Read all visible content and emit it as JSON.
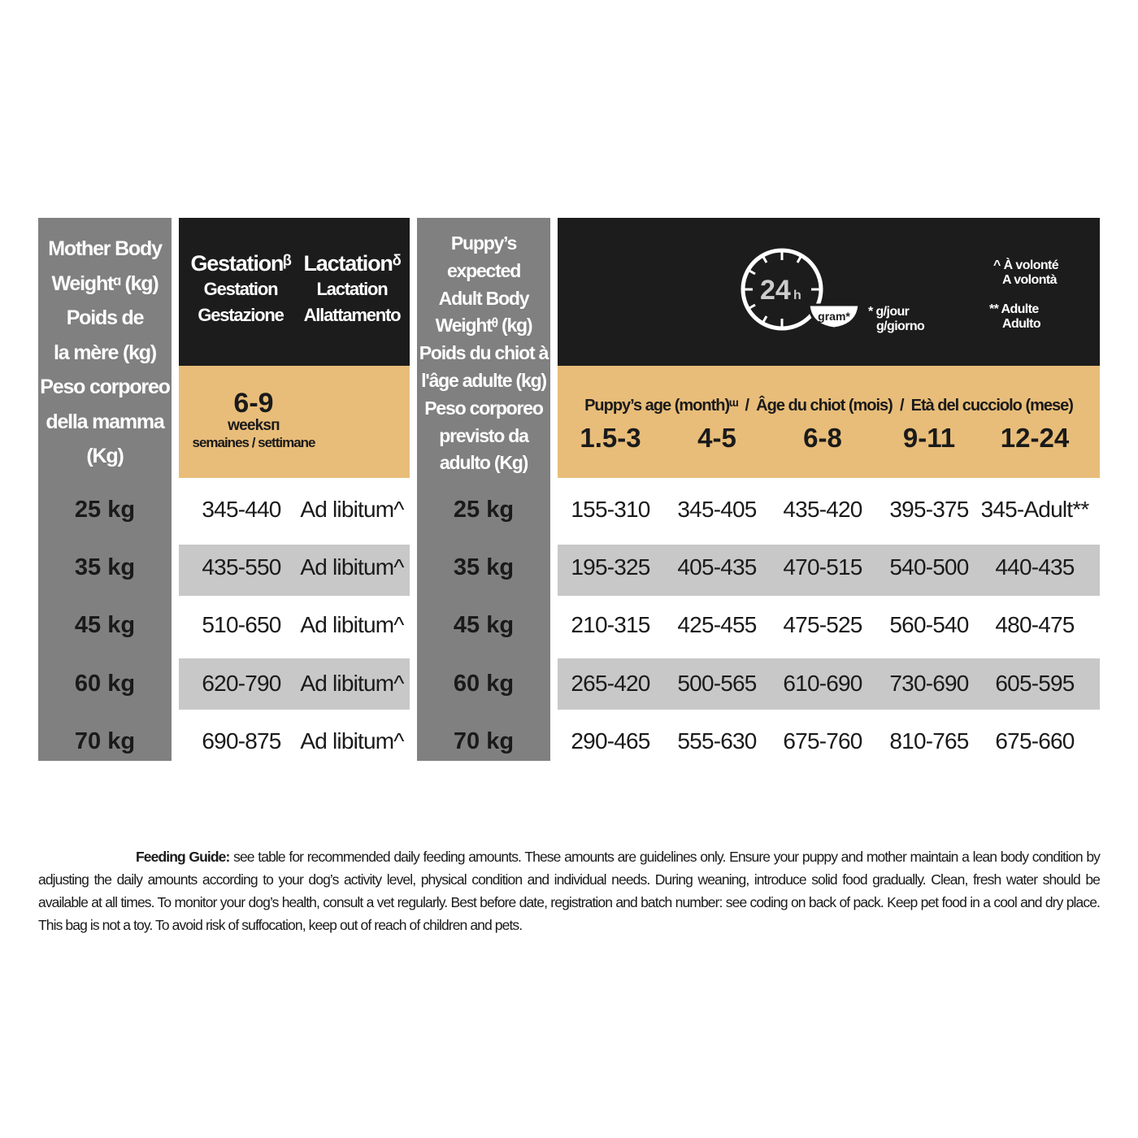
{
  "mother_header": [
    "Mother Body",
    "Weightᵅ (kg)",
    "Poids de",
    "la mère (kg)",
    "Peso corporeo",
    "della mamma (Kg)"
  ],
  "gestation_header": [
    "Gestationᵝ",
    "Gestation",
    "Gestazione"
  ],
  "lactation_header": [
    "Lactationᵟ",
    "Lactation",
    "Allattamento"
  ],
  "duration": {
    "value": "6-9",
    "unit": "weeksᴨ",
    "translation": "semaines / settimane"
  },
  "puppy_weight_header": [
    "Puppy’s expected",
    "Adult Body",
    "Weightᶿ (kg)",
    "Poids du chiot à",
    "l'âge adulte (kg)",
    "Peso corporeo",
    "previsto da",
    "adulto (Kg)"
  ],
  "icon": {
    "name": "24h-clock-bowl-icon",
    "clock_label": "24",
    "clock_unit": "h",
    "bowl_label": "gram*"
  },
  "legend": {
    "gram": [
      "* g/jour",
      "g/giorno"
    ],
    "ad_libitum": [
      "^ À volonté",
      "A volontà"
    ],
    "adult": [
      "** Adulte",
      "Adulto"
    ]
  },
  "age_header": "Puppy’s age (month)ᵚ  /  Âge du chiot (mois)  /  Età del cucciolo (mese)",
  "age_columns": [
    "1.5-3",
    "4-5",
    "6-8",
    "9-11",
    "12-24"
  ],
  "rows": [
    {
      "mother": "25 kg",
      "gestation": "345-440",
      "lactation": "Ad libitum^",
      "puppy": "25 kg",
      "amounts": [
        "155-310",
        "345-405",
        "435-420",
        "395-375",
        "345-Adult**"
      ]
    },
    {
      "mother": "35 kg",
      "gestation": "435-550",
      "lactation": "Ad libitum^",
      "puppy": "35 kg",
      "amounts": [
        "195-325",
        "405-435",
        "470-515",
        "540-500",
        "440-435"
      ]
    },
    {
      "mother": "45 kg",
      "gestation": "510-650",
      "lactation": "Ad libitum^",
      "puppy": "45 kg",
      "amounts": [
        "210-315",
        "425-455",
        "475-525",
        "560-540",
        "480-475"
      ]
    },
    {
      "mother": "60 kg",
      "gestation": "620-790",
      "lactation": "Ad libitum^",
      "puppy": "60 kg",
      "amounts": [
        "265-420",
        "500-565",
        "610-690",
        "730-690",
        "605-595"
      ]
    },
    {
      "mother": "70 kg",
      "gestation": "690-875",
      "lactation": "Ad libitum^",
      "puppy": "70 kg",
      "amounts": [
        "290-465",
        "555-630",
        "675-760",
        "810-765",
        "675-660"
      ]
    }
  ],
  "footer": {
    "label": "Feeding Guide:",
    "text": "see table for recommended daily feeding amounts. These amounts are guidelines only. Ensure your puppy and mother maintain a lean body condition by adjusting the daily amounts according to your dog’s activity level, physical condition and individual needs. During weaning, introduce solid food gradually. Clean, fresh water should be available at all times. To monitor your dog’s health, consult a vet regularly. Best before date, registration and batch number: see coding on back of pack. Keep pet food in a cool and dry place. This bag is not a toy. To avoid risk of suffocation, keep out of reach of children and pets."
  },
  "colors": {
    "gray": "#808080",
    "black": "#1c1c1c",
    "tan": "#e8bd79",
    "stripe": "#c8c8c8"
  }
}
